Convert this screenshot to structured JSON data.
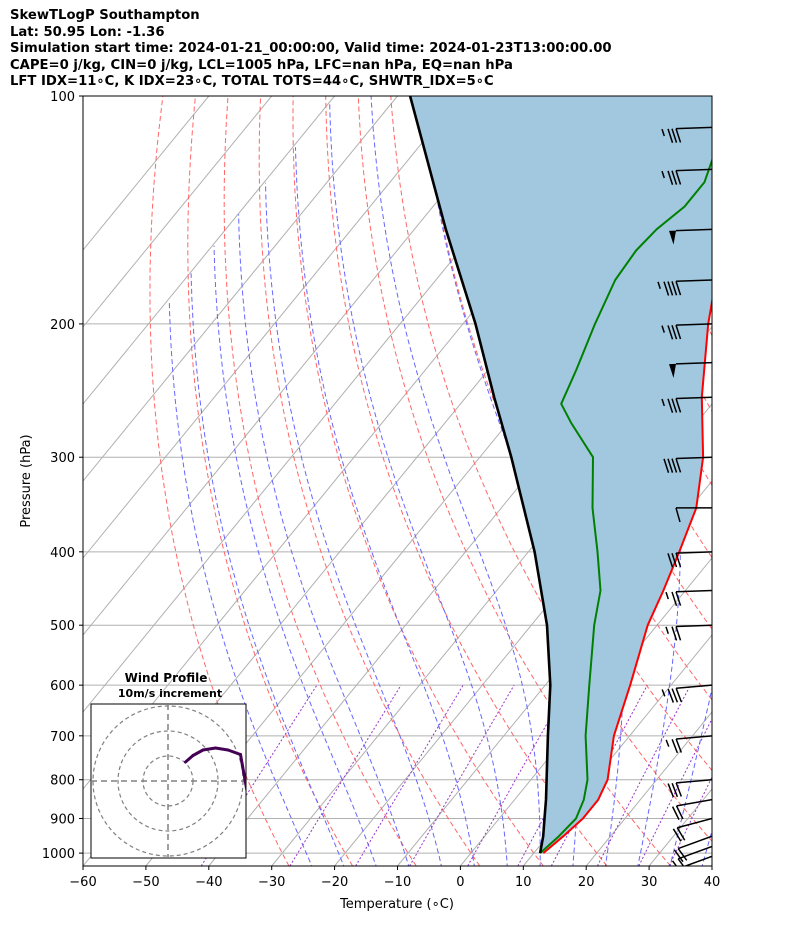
{
  "header": {
    "line1": "SkewTLogP Southampton",
    "line2": "Lat: 50.95   Lon: -1.36",
    "line3": "Simulation start time: 2024-01-21_00:00:00, Valid time: 2024-01-23T13:00:00.00",
    "line4": "CAPE=0 j/kg, CIN=0 j/kg, LCL=1005 hPa, LFC=nan hPa, EQ=nan hPa",
    "line5": "LFT IDX=11∘C, K IDX=23∘C, TOTAL TOTS=44∘C, SHWTR_IDX=5∘C"
  },
  "colors": {
    "temperature": "#ff0000",
    "dewpoint": "#008000",
    "parcel": "#000000",
    "shading": "#a2c8e0",
    "dry_adiabat": "#ff6666",
    "moist_adiabat": "#6666ff",
    "mixing_ratio": "#9933cc",
    "isotherm": "#b0b0b0",
    "isobar": "#b0b0b0",
    "hodo_low": "#2e6f8e",
    "hodo_high": "#440154"
  },
  "chart_data": {
    "type": "line",
    "title": "",
    "xlabel": "Temperature (∘C)",
    "ylabel": "Pressure (hPa)",
    "xlim": [
      -60,
      40
    ],
    "ylim": [
      1040,
      100
    ],
    "y_scale": "log",
    "x_ticks": [
      "−60",
      "−50",
      "−40",
      "−30",
      "−20",
      "−10",
      "0",
      "10",
      "20",
      "30",
      "40"
    ],
    "y_ticks": [
      "100",
      "200",
      "300",
      "400",
      "500",
      "600",
      "700",
      "800",
      "900",
      "1000"
    ],
    "grid": true,
    "series": [
      {
        "role": "temperature",
        "points": [
          [
            1000,
            11.5
          ],
          [
            950,
            12.5
          ],
          [
            900,
            13.3
          ],
          [
            850,
            13.3
          ],
          [
            800,
            12.2
          ],
          [
            700,
            7.5
          ],
          [
            600,
            3.5
          ],
          [
            500,
            -1.5
          ],
          [
            450,
            -3.5
          ],
          [
            400,
            -6
          ],
          [
            350,
            -9
          ],
          [
            300,
            -14.5
          ],
          [
            250,
            -22.5
          ],
          [
            200,
            -31
          ],
          [
            175,
            -35.5
          ],
          [
            150,
            -41
          ],
          [
            135,
            -46
          ],
          [
            120,
            -51
          ],
          [
            100,
            -58
          ]
        ]
      },
      {
        "role": "dewpoint",
        "points": [
          [
            1000,
            11
          ],
          [
            950,
            11.8
          ],
          [
            900,
            12.2
          ],
          [
            850,
            11
          ],
          [
            800,
            9
          ],
          [
            700,
            3
          ],
          [
            600,
            -3
          ],
          [
            500,
            -10
          ],
          [
            450,
            -13.5
          ],
          [
            400,
            -19
          ],
          [
            350,
            -25.5
          ],
          [
            300,
            -32
          ],
          [
            270,
            -40
          ],
          [
            255,
            -44
          ],
          [
            230,
            -46
          ],
          [
            200,
            -49
          ],
          [
            175,
            -51.5
          ],
          [
            160,
            -52
          ],
          [
            150,
            -51.5
          ],
          [
            140,
            -50
          ],
          [
            130,
            -50
          ],
          [
            115,
            -53
          ],
          [
            100,
            -56
          ]
        ]
      },
      {
        "role": "parcel",
        "points": [
          [
            1000,
            11
          ],
          [
            950,
            9.3
          ],
          [
            900,
            7.2
          ],
          [
            850,
            5
          ],
          [
            800,
            2.5
          ],
          [
            700,
            -3
          ],
          [
            600,
            -9.2
          ],
          [
            500,
            -17.5
          ],
          [
            400,
            -29
          ],
          [
            300,
            -45
          ],
          [
            250,
            -55.5
          ],
          [
            200,
            -68
          ],
          [
            150,
            -85
          ],
          [
            100,
            -108
          ]
        ]
      }
    ],
    "wind_barbs": [
      {
        "p": 1040,
        "speed": 15,
        "dir": 250
      },
      {
        "p": 1010,
        "speed": 15,
        "dir": 250
      },
      {
        "p": 980,
        "speed": 15,
        "dir": 250
      },
      {
        "p": 950,
        "speed": 20,
        "dir": 250
      },
      {
        "p": 900,
        "speed": 20,
        "dir": 255
      },
      {
        "p": 850,
        "speed": 20,
        "dir": 260
      },
      {
        "p": 800,
        "speed": 30,
        "dir": 265
      },
      {
        "p": 700,
        "speed": 25,
        "dir": 265
      },
      {
        "p": 600,
        "speed": 35,
        "dir": 265
      },
      {
        "p": 500,
        "speed": 25,
        "dir": 268
      },
      {
        "p": 450,
        "speed": 25,
        "dir": 268
      },
      {
        "p": 400,
        "speed": 30,
        "dir": 268
      },
      {
        "p": 350,
        "speed": 10,
        "dir": 270
      },
      {
        "p": 300,
        "speed": 40,
        "dir": 268
      },
      {
        "p": 250,
        "speed": 35,
        "dir": 268
      },
      {
        "p": 225,
        "speed": 50,
        "dir": 268
      },
      {
        "p": 200,
        "speed": 35,
        "dir": 268
      },
      {
        "p": 175,
        "speed": 45,
        "dir": 268
      },
      {
        "p": 150,
        "speed": 50,
        "dir": 268
      },
      {
        "p": 125,
        "speed": 35,
        "dir": 268
      },
      {
        "p": 110,
        "speed": 35,
        "dir": 268
      }
    ],
    "hodograph": {
      "title": "Wind Profile",
      "subtitle": "10m/s increment",
      "points": [
        [
          6,
          0.5
        ],
        [
          8,
          0.4
        ],
        [
          9,
          0.2
        ],
        [
          8,
          -0.8
        ],
        [
          7,
          -1.6
        ],
        [
          7,
          -2.5
        ],
        [
          8,
          -3.5
        ],
        [
          8,
          -4.5
        ],
        [
          7,
          -5
        ],
        [
          6.5,
          -6
        ],
        [
          4.5,
          5.3
        ],
        [
          2,
          6.2
        ],
        [
          -0.5,
          6.6
        ],
        [
          -3,
          6.2
        ],
        [
          -5,
          5.1
        ],
        [
          -6.5,
          3.8
        ]
      ]
    }
  }
}
